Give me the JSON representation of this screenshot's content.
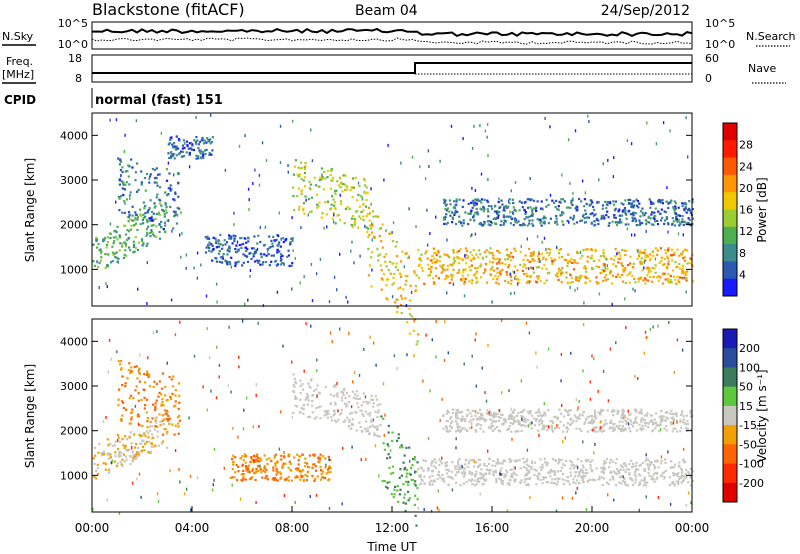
{
  "header": {
    "title": "Blackstone (fitACF)",
    "beam": "Beam 04",
    "date": "24/Sep/2012"
  },
  "top_panels": {
    "nsky_label": "N.Sky",
    "nsearch_label": "N.Search",
    "freq_label": "Freq.",
    "freq_unit": "[MHz]",
    "nave_label": "Nave",
    "cpid_label": "CPID",
    "cpid_value": "normal (fast) 151",
    "noise_left_ticks": [
      "10^5",
      "10^0"
    ],
    "noise_right_ticks": [
      "10^5",
      "10^0"
    ],
    "freq_ticks": [
      18,
      8
    ],
    "nave_ticks": [
      60,
      0
    ]
  },
  "chart_data": [
    {
      "type": "heatmap",
      "name": "power",
      "ylabel": "Slant Range [km]",
      "xlabel": "",
      "xlim": [
        0,
        24
      ],
      "ylim": [
        180,
        4500
      ],
      "yticks": [
        1000,
        2000,
        3000,
        4000
      ],
      "colorbar": {
        "label": "Power [dB]",
        "ticks": [
          4,
          8,
          12,
          16,
          20,
          24,
          28
        ],
        "colors": [
          "#1a1aff",
          "#2a5ab4",
          "#3c8c8c",
          "#4caf50",
          "#9bcd32",
          "#f0c800",
          "#ff9600",
          "#ff5a00",
          "#ff1a00",
          "#e00000"
        ]
      },
      "bands": [
        {
          "x": [
            0.0,
            3.0
          ],
          "y": [
            900,
            1700
          ],
          "slope": 300,
          "level": 10
        },
        {
          "x": [
            1.0,
            3.5
          ],
          "y": [
            2200,
            3600
          ],
          "slope": -150,
          "level": 6
        },
        {
          "x": [
            3.0,
            4.8
          ],
          "y": [
            3500,
            4000
          ],
          "slope": 0,
          "level": 5
        },
        {
          "x": [
            4.5,
            8.0
          ],
          "y": [
            1100,
            1800
          ],
          "slope": 0,
          "level": 5
        },
        {
          "x": [
            8.0,
            11.0
          ],
          "y": [
            2300,
            3500
          ],
          "slope": -150,
          "level": 14
        },
        {
          "x": [
            11.0,
            13.0
          ],
          "y": [
            700,
            2500
          ],
          "slope": -700,
          "level": 16
        },
        {
          "x": [
            13.0,
            24.0
          ],
          "y": [
            700,
            1500
          ],
          "slope": 0,
          "level": 18
        },
        {
          "x": [
            14.0,
            24.0
          ],
          "y": [
            2000,
            2600
          ],
          "slope": 0,
          "level": 6
        }
      ]
    },
    {
      "type": "heatmap",
      "name": "velocity",
      "ylabel": "Slant Range [km]",
      "xlabel": "Time UT",
      "xlim": [
        0,
        24
      ],
      "ylim": [
        180,
        4500
      ],
      "xticks": [
        "00:00",
        "04:00",
        "08:00",
        "12:00",
        "16:00",
        "20:00",
        "00:00"
      ],
      "yticks": [
        1000,
        2000,
        3000,
        4000
      ],
      "colorbar": {
        "label": "Velocity [m s⁻¹]",
        "ticks": [
          200,
          100,
          50,
          15,
          -15,
          -50,
          -100,
          -200
        ],
        "colors": [
          "#1a1ab4",
          "#2a4c9c",
          "#3c7c5c",
          "#5cc83c",
          "#c8c8c0",
          "#f0a000",
          "#ff6400",
          "#ff2a00",
          "#e00000"
        ]
      },
      "bands": [
        {
          "x": [
            0.0,
            3.0
          ],
          "y": [
            900,
            1700
          ],
          "slope": 250,
          "level": -15
        },
        {
          "x": [
            1.0,
            3.5
          ],
          "y": [
            2200,
            3600
          ],
          "slope": -150,
          "level": -50
        },
        {
          "x": [
            5.5,
            9.5
          ],
          "y": [
            900,
            1500
          ],
          "slope": 0,
          "level": -50
        },
        {
          "x": [
            8.0,
            11.5
          ],
          "y": [
            2400,
            3300
          ],
          "slope": -150,
          "level": 0
        },
        {
          "x": [
            11.5,
            13.0
          ],
          "y": [
            900,
            2500
          ],
          "slope": -700,
          "level": 50
        },
        {
          "x": [
            13.0,
            24.0
          ],
          "y": [
            800,
            1400
          ],
          "slope": 0,
          "level": 0
        },
        {
          "x": [
            14.0,
            24.0
          ],
          "y": [
            2000,
            2500
          ],
          "slope": 0,
          "level": 0
        }
      ]
    }
  ]
}
